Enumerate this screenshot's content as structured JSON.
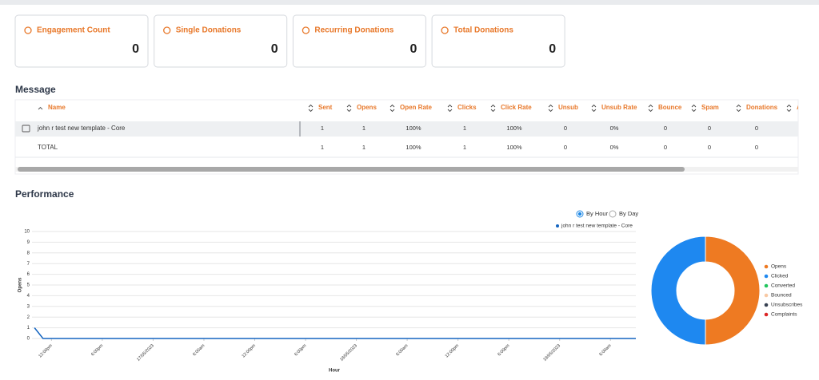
{
  "cards": [
    {
      "title": "Engagement Count",
      "value": 0
    },
    {
      "title": "Single Donations",
      "value": 0
    },
    {
      "title": "Recurring Donations",
      "value": 0
    },
    {
      "title": "Total Donations",
      "value": 0
    }
  ],
  "message": {
    "heading": "Message",
    "table": {
      "columns": [
        "Name",
        "Sent",
        "Opens",
        "Open Rate",
        "Clicks",
        "Click Rate",
        "Unsub",
        "Unsub Rate",
        "Bounce",
        "Spam",
        "Donations",
        "A"
      ],
      "rows": [
        [
          "john r test new template - Core",
          1,
          1,
          "100%",
          1,
          "100%",
          0,
          "0%",
          0,
          0,
          0
        ],
        [
          "TOTAL",
          1,
          1,
          "100%",
          1,
          "100%",
          0,
          "0%",
          0,
          0,
          0
        ]
      ]
    }
  },
  "performance": {
    "heading": "Performance",
    "toggle": {
      "options": [
        "By Hour",
        "By Day"
      ],
      "selected": 0
    },
    "line_chart": {
      "type": "line",
      "y_label": "Opens",
      "x_label": "Hour",
      "series": [
        {
          "name": "john r test new template - Core",
          "color": "#1565c0",
          "x": [
            10,
            11,
            81
          ],
          "values": [
            1,
            0,
            0
          ]
        }
      ],
      "xlim": [
        9.7,
        81
      ],
      "ylim": [
        0,
        10
      ],
      "yticks": [
        0,
        1,
        2,
        3,
        4,
        5,
        6,
        7,
        8,
        9,
        10
      ],
      "xticks": [
        {
          "value": 12,
          "label": "12:00pm"
        },
        {
          "value": 18,
          "label": "6:00pm"
        },
        {
          "value": 24,
          "label": "17/05/2023"
        },
        {
          "value": 30,
          "label": "6:00am"
        },
        {
          "value": 36,
          "label": "12:00pm"
        },
        {
          "value": 42,
          "label": "6:00pm"
        },
        {
          "value": 48,
          "label": "18/05/2023"
        },
        {
          "value": 54,
          "label": "6:00am"
        },
        {
          "value": 60,
          "label": "12:00pm"
        },
        {
          "value": 66,
          "label": "6:00pm"
        },
        {
          "value": 72,
          "label": "19/05/2023"
        },
        {
          "value": 78,
          "label": "6:00am"
        }
      ],
      "grid": true
    },
    "donut": {
      "type": "pie",
      "categories": [
        "Opens",
        "Clicked",
        "Converted",
        "Bounced",
        "Unsubscribes",
        "Complaints"
      ],
      "values": [
        1,
        1,
        0,
        0,
        0,
        0
      ],
      "colors": [
        "#ee7a22",
        "#1e88f0",
        "#22c55e",
        "#f8c9a4",
        "#374151",
        "#dc2626"
      ]
    }
  }
}
